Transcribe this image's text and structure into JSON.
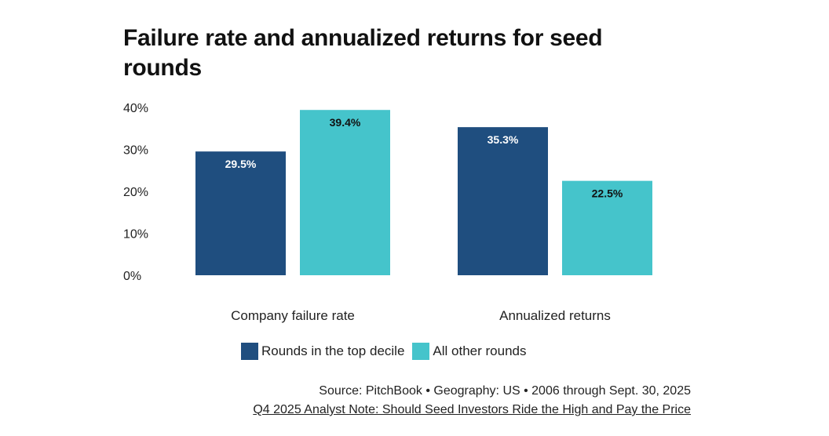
{
  "title": "Failure rate and annualized returns for seed rounds",
  "source": "Source: PitchBook • Geography: US • 2006 through Sept. 30, 2025",
  "note": "Q4 2025 Analyst Note: Should Seed Investors Ride the High and Pay the Price",
  "colors": {
    "top_decile": "#1f4e7f",
    "other": "#45c4cb",
    "label_on_dark": "#ffffff",
    "label_on_light": "#111111"
  },
  "chart_data": {
    "type": "bar",
    "categories": [
      "Company failure rate",
      "Annualized returns"
    ],
    "series": [
      {
        "name": "Rounds in the top decile",
        "values": [
          29.5,
          35.3
        ],
        "labels": [
          "29.5%",
          "35.3%"
        ]
      },
      {
        "name": "All other rounds",
        "values": [
          39.4,
          22.5
        ],
        "labels": [
          "39.4%",
          "22.5%"
        ]
      }
    ],
    "ylim": [
      0,
      40
    ],
    "yticks": [
      0,
      10,
      20,
      30,
      40
    ],
    "ytick_labels": [
      "0%",
      "10%",
      "20%",
      "30%",
      "40%"
    ],
    "grid": false,
    "legend": "bottom-center"
  }
}
